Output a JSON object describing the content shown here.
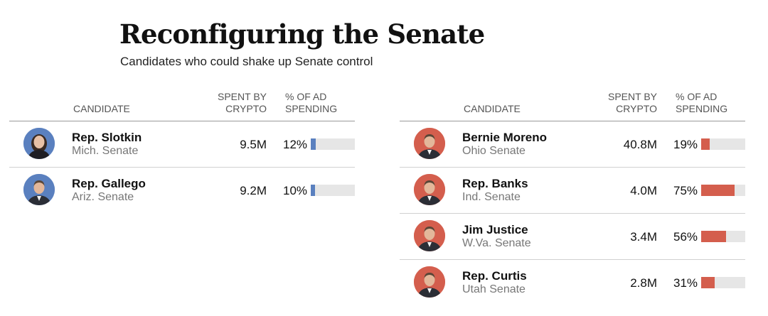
{
  "title": "Reconfiguring the Senate",
  "subtitle": "Candidates who could shake up Senate control",
  "headers": {
    "candidate": "CANDIDATE",
    "spent_line1": "SPENT BY",
    "spent_line2": "CRYPTO",
    "pct_line1": "% OF AD",
    "pct_line2": "SPENDING"
  },
  "colors": {
    "democrat": "#5a80bf",
    "republican": "#d45e4d",
    "track": "#e6e6e6"
  },
  "chart_data": [
    {
      "type": "table",
      "party": "democrat",
      "columns": [
        "CANDIDATE",
        "SPENT BY CRYPTO",
        "% OF AD SPENDING"
      ],
      "rows": [
        {
          "name": "Rep. Slotkin",
          "race": "Mich. Senate",
          "spent": "9.5M",
          "pct_label": "12%",
          "pct": 12,
          "avatar": "woman-portrait"
        },
        {
          "name": "Rep. Gallego",
          "race": "Ariz. Senate",
          "spent": "9.2M",
          "pct_label": "10%",
          "pct": 10,
          "avatar": "man-portrait"
        }
      ]
    },
    {
      "type": "table",
      "party": "republican",
      "columns": [
        "CANDIDATE",
        "SPENT BY CRYPTO",
        "% OF AD SPENDING"
      ],
      "rows": [
        {
          "name": "Bernie Moreno",
          "race": "Ohio Senate",
          "spent": "40.8M",
          "pct_label": "19%",
          "pct": 19,
          "avatar": "man-portrait"
        },
        {
          "name": "Rep. Banks",
          "race": "Ind. Senate",
          "spent": "4.0M",
          "pct_label": "75%",
          "pct": 75,
          "avatar": "man-portrait"
        },
        {
          "name": "Jim Justice",
          "race": "W.Va. Senate",
          "spent": "3.4M",
          "pct_label": "56%",
          "pct": 56,
          "avatar": "man-portrait"
        },
        {
          "name": "Rep. Curtis",
          "race": "Utah Senate",
          "spent": "2.8M",
          "pct_label": "31%",
          "pct": 31,
          "avatar": "man-portrait"
        }
      ]
    }
  ]
}
